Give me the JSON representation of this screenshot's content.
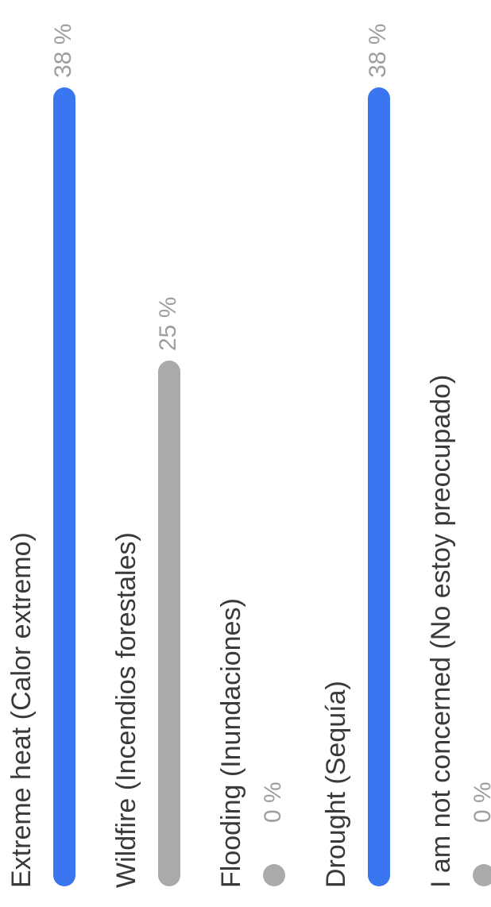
{
  "poll": {
    "options": [
      {
        "label": "Extreme heat (Calor extremo)",
        "percent_text": "38 %",
        "value": 38,
        "highlighted": true
      },
      {
        "label": "Wildfire (Incendios forestales)",
        "percent_text": "25 %",
        "value": 25,
        "highlighted": false
      },
      {
        "label": "Flooding (Inundaciones)",
        "percent_text": "0 %",
        "value": 0,
        "highlighted": false
      },
      {
        "label": "Drought (Sequía)",
        "percent_text": "38 %",
        "value": 38,
        "highlighted": true
      },
      {
        "label": "I am not concerned (No estoy preocupado)",
        "percent_text": "0 %",
        "value": 0,
        "highlighted": false
      }
    ]
  },
  "colors": {
    "accent": "#3a76ef",
    "muted": "#aaaaaa"
  },
  "chart_data": {
    "type": "bar",
    "categories": [
      "Extreme heat (Calor extremo)",
      "Wildfire (Incendios forestales)",
      "Flooding (Inundaciones)",
      "Drought (Sequía)",
      "I am not concerned (No estoy preocupado)"
    ],
    "values": [
      38,
      25,
      0,
      38,
      0
    ],
    "unit": "%"
  }
}
